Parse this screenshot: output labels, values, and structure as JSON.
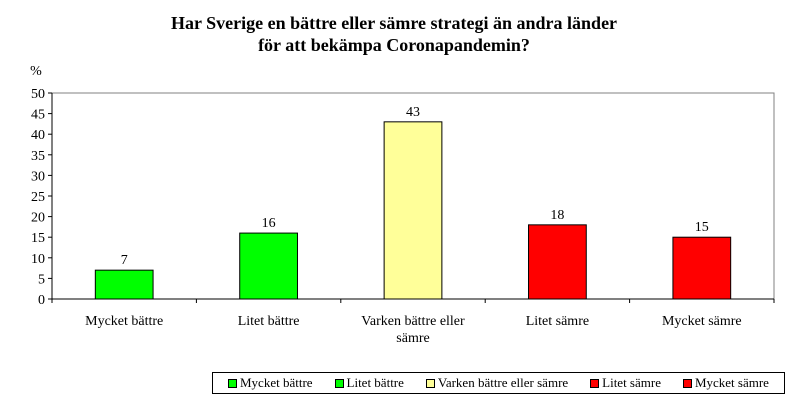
{
  "chart_data": {
    "type": "bar",
    "title_lines": [
      "Har Sverige en bättre eller sämre strategi än andra länder",
      "för att bekämpa Coronapandemin?"
    ],
    "ylabel": "%",
    "xlabel": "",
    "ylim": [
      0,
      50
    ],
    "yticks": [
      "0",
      "5",
      "10",
      "15",
      "20",
      "25",
      "30",
      "35",
      "40",
      "45",
      "50"
    ],
    "grid": false,
    "legend_position": "bottom-right",
    "categories": [
      [
        "Mycket bättre"
      ],
      [
        "Litet bättre"
      ],
      [
        "Varken bättre eller",
        "sämre"
      ],
      [
        "Litet sämre"
      ],
      [
        "Mycket sämre"
      ]
    ],
    "values": [
      7,
      16,
      43,
      18,
      15
    ],
    "data_labels": [
      "7",
      "16",
      "43",
      "18",
      "15"
    ],
    "colors": [
      "#00ff00",
      "#00ff00",
      "#ffff99",
      "#ff0000",
      "#ff0000"
    ],
    "legend": [
      {
        "label": "Mycket bättre",
        "color": "#00ff00"
      },
      {
        "label": "Litet bättre",
        "color": "#00ff00"
      },
      {
        "label": "Varken bättre eller sämre",
        "color": "#ffff99"
      },
      {
        "label": "Litet sämre",
        "color": "#ff0000"
      },
      {
        "label": "Mycket sämre",
        "color": "#ff0000"
      }
    ]
  }
}
